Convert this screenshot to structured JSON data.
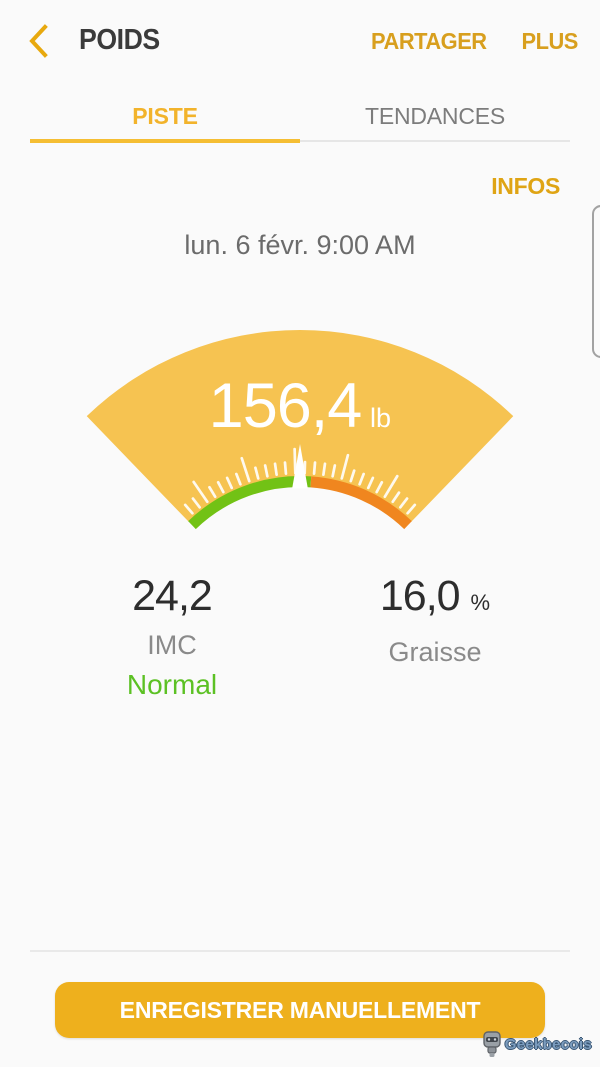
{
  "header": {
    "title": "POIDS",
    "back_icon": "back-chevron",
    "actions": [
      {
        "label": "PARTAGER"
      },
      {
        "label": "PLUS"
      }
    ],
    "accent_color": "#d89f1e",
    "title_color": "#3b3b3b"
  },
  "tabs": {
    "active_index": 0,
    "items": [
      {
        "label": "PISTE"
      },
      {
        "label": "TENDANCES"
      }
    ],
    "active_color": "#f2b32b",
    "inactive_color": "#7c7c7c",
    "underline_color": "#f5be33"
  },
  "infos_label": "INFOS",
  "date": "lun. 6 févr. 9:00 AM",
  "chart_data": {
    "type": "gauge",
    "value": 156.4,
    "value_display": "156,4",
    "unit": "lb",
    "needle_angle_deg": 0,
    "half_angle_deg": 44,
    "zone_split_angle_deg": 4,
    "zones": [
      {
        "name": "normal",
        "color": "#72c215"
      },
      {
        "name": "above",
        "color": "#f0861f"
      }
    ],
    "fan_color": "#f6c351",
    "tick_color": "rgba(255,255,255,0.9)",
    "needle_color": "#ffffff",
    "inner_radius": 160,
    "outer_radius": 307,
    "tick_start_deg": -41,
    "tick_step_deg": 3.28,
    "tick_count": 26
  },
  "stats": {
    "left": {
      "value": "24,2",
      "label": "IMC",
      "status": "Normal",
      "status_color": "#5cc124"
    },
    "right": {
      "value": "16,0",
      "unit": "%",
      "label": "Graisse"
    }
  },
  "button": {
    "label": "ENREGISTRER MANUELLEMENT",
    "color": "#eeb01d"
  },
  "watermark": {
    "label": "Geekbecois"
  },
  "background_color": "#fafafa"
}
